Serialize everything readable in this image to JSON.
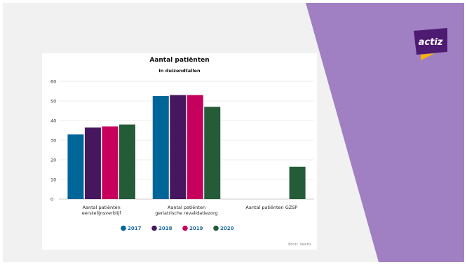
{
  "brand": {
    "logo_text": "actiz",
    "panel_color": "#a07fc2",
    "logo_bg": "#4d1b72",
    "logo_accent": "#f5b400"
  },
  "chart_data": {
    "type": "bar",
    "title": "Aantal patiënten",
    "subtitle": "In duizendtallen",
    "xlabel": "",
    "ylabel": "",
    "ylim": [
      0,
      60
    ],
    "yticks": [
      0,
      10,
      20,
      30,
      40,
      50,
      60
    ],
    "categories": [
      [
        "Aantal patiënten",
        "eerstelijnsverblijf"
      ],
      [
        "Aantal patiënten",
        "geriatrische revalidatiezorg"
      ],
      [
        "Aantal patiënten GZSP"
      ]
    ],
    "series": [
      {
        "name": "2017",
        "color": "#006699",
        "values": [
          33,
          52.5,
          null
        ]
      },
      {
        "name": "2018",
        "color": "#46165e",
        "values": [
          36.5,
          53,
          null
        ]
      },
      {
        "name": "2019",
        "color": "#c7005d",
        "values": [
          37,
          53,
          null
        ]
      },
      {
        "name": "2020",
        "color": "#245c38",
        "values": [
          38,
          47,
          16.5
        ]
      }
    ],
    "legend_position": "bottom",
    "grid": true,
    "source": "Bron: Vektis"
  }
}
